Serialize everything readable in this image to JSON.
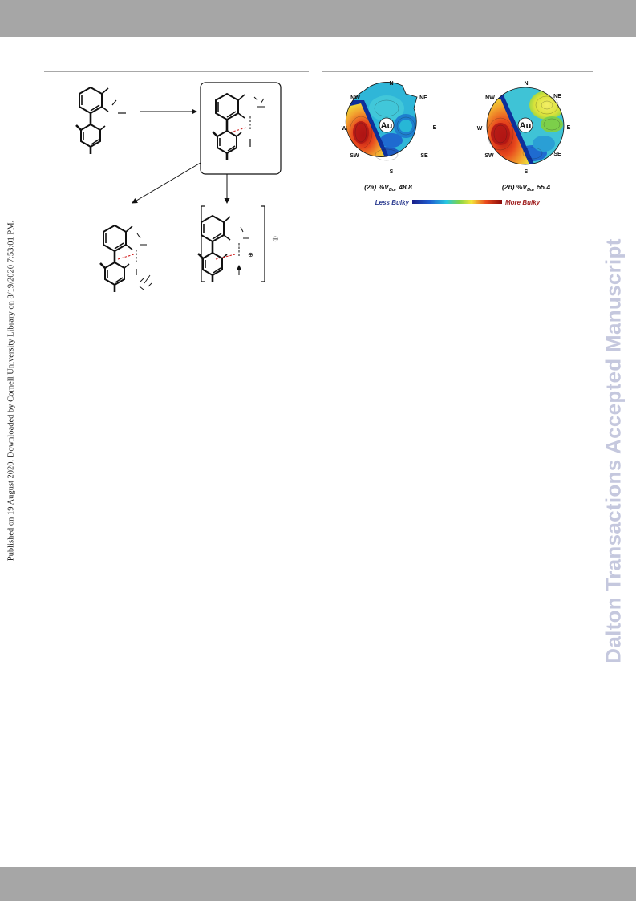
{
  "published": "Published on 19 August 2020. Downloaded by Cornell University Library on 8/19/2020 7:53:01 PM.",
  "watermark": "Dalton Transactions Accepted Manuscript",
  "charge_symbol": "⊖",
  "cation_symbol": "⊕",
  "steric_maps": {
    "compass": [
      "N",
      "NE",
      "E",
      "SE",
      "S",
      "SW",
      "W",
      "NW"
    ],
    "center_label": "Au",
    "maps": [
      {
        "id": "2a",
        "caption_prefix": "(2a) %V",
        "caption_sub": "Bur",
        "caption_value": "48.8"
      },
      {
        "id": "2b",
        "caption_prefix": "(2b) %V",
        "caption_sub": "Bur",
        "caption_value": "55.4"
      }
    ],
    "legend_less": "Less Bulky",
    "legend_more": "More Bulky",
    "colors": {
      "low": "#1f3fae",
      "mid_low": "#27b7d6",
      "mid": "#7ccf4a",
      "mid_high": "#f2e23a",
      "high": "#e8401e",
      "very_high": "#9a1010"
    }
  }
}
